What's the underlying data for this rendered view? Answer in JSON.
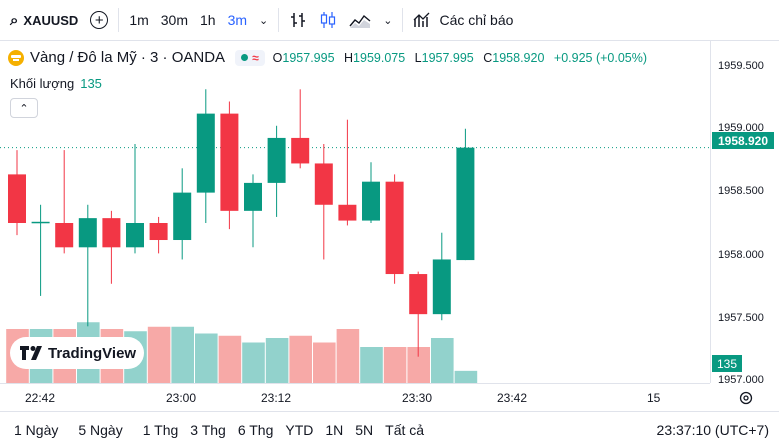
{
  "toolbar": {
    "symbol": "XAUUSD",
    "intervals": [
      "1m",
      "30m",
      "1h",
      "3m"
    ],
    "active_interval": "3m",
    "indicators_label": "Các chỉ báo"
  },
  "legend": {
    "title": "Vàng / Đô la Mỹ · 3 · OANDA",
    "o_key": "O",
    "o_val": "1957.995",
    "h_key": "H",
    "h_val": "1959.075",
    "l_key": "L",
    "l_val": "1957.995",
    "c_key": "C",
    "c_val": "1958.920",
    "change": "+0.925 (+0.05%)"
  },
  "volume": {
    "label": "Khối lượng",
    "value": "135"
  },
  "logo": "TradingView",
  "price_axis": [
    "1959.500",
    "1959.000",
    "1958.500",
    "1958.000",
    "1957.500",
    "1957.000"
  ],
  "last_price_tag": "1958.920",
  "volume_tag": "135",
  "time_axis": [
    "22:42",
    "23:00",
    "23:12",
    "23:30",
    "23:42",
    "15"
  ],
  "ranges": [
    "1 Ngày",
    "5 Ngày",
    "1 Thg",
    "3 Thg",
    "6 Thg",
    "YTD",
    "1N",
    "5N",
    "Tất cả"
  ],
  "clock": "23:37:10 (UTC+7)",
  "colors": {
    "up": "#089981",
    "down": "#f23645",
    "vol_up": "#92d2cc",
    "vol_down": "#f7a9a7"
  },
  "chart_data": {
    "type": "candlestick",
    "ylim": [
      1957.0,
      1959.6
    ],
    "candles": [
      {
        "o": 1958.7,
        "h": 1958.9,
        "l": 1958.2,
        "c": 1958.3
      },
      {
        "o": 1958.3,
        "h": 1958.45,
        "l": 1957.7,
        "c": 1958.31
      },
      {
        "o": 1958.3,
        "h": 1958.9,
        "l": 1958.05,
        "c": 1958.1
      },
      {
        "o": 1958.1,
        "h": 1958.45,
        "l": 1957.45,
        "c": 1958.34
      },
      {
        "o": 1958.34,
        "h": 1958.4,
        "l": 1957.8,
        "c": 1958.1
      },
      {
        "o": 1958.1,
        "h": 1958.95,
        "l": 1958.05,
        "c": 1958.3
      },
      {
        "o": 1958.3,
        "h": 1958.35,
        "l": 1958.05,
        "c": 1958.16
      },
      {
        "o": 1958.16,
        "h": 1958.75,
        "l": 1958.0,
        "c": 1958.55
      },
      {
        "o": 1958.55,
        "h": 1959.4,
        "l": 1958.3,
        "c": 1959.2
      },
      {
        "o": 1959.2,
        "h": 1959.3,
        "l": 1958.25,
        "c": 1958.4
      },
      {
        "o": 1958.4,
        "h": 1958.7,
        "l": 1958.1,
        "c": 1958.63
      },
      {
        "o": 1958.63,
        "h": 1959.1,
        "l": 1958.35,
        "c": 1959.0
      },
      {
        "o": 1959.0,
        "h": 1959.4,
        "l": 1958.75,
        "c": 1958.79
      },
      {
        "o": 1958.79,
        "h": 1958.95,
        "l": 1958.0,
        "c": 1958.45
      },
      {
        "o": 1958.45,
        "h": 1959.15,
        "l": 1958.28,
        "c": 1958.32
      },
      {
        "o": 1958.32,
        "h": 1958.8,
        "l": 1958.3,
        "c": 1958.64
      },
      {
        "o": 1958.64,
        "h": 1958.7,
        "l": 1957.8,
        "c": 1957.88
      },
      {
        "o": 1957.88,
        "h": 1957.9,
        "l": 1957.2,
        "c": 1957.55
      },
      {
        "o": 1957.55,
        "h": 1958.22,
        "l": 1957.5,
        "c": 1958.0
      },
      {
        "o": 1957.995,
        "h": 1959.075,
        "l": 1957.995,
        "c": 1958.92
      }
    ],
    "volumes": [
      600,
      600,
      600,
      675,
      600,
      575,
      625,
      625,
      550,
      525,
      450,
      500,
      525,
      450,
      600,
      400,
      400,
      400,
      500,
      135
    ]
  }
}
